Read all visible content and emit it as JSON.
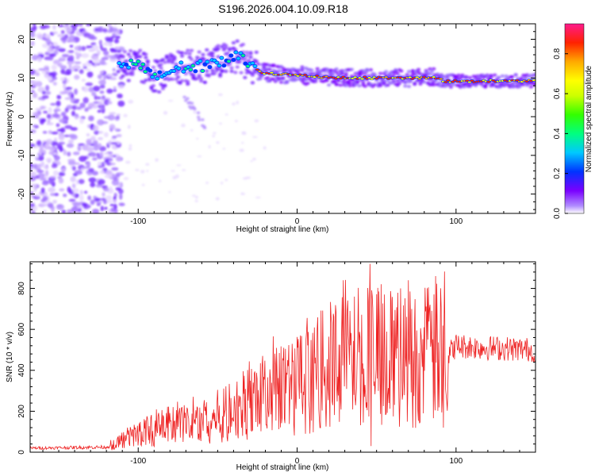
{
  "title": "S196.2026.004.10.09.R18",
  "chart_data": [
    {
      "type": "heatmap",
      "xlabel": "Height of straight line (km)",
      "ylabel": "Frequency (Hz)",
      "xlim": [
        -168,
        150
      ],
      "ylim": [
        -25,
        24
      ],
      "xticks": [
        -100,
        0,
        100
      ],
      "yticks": [
        -20,
        -10,
        0,
        10,
        20
      ],
      "colorbar": {
        "label": "Normalized spectral amplitude",
        "range": [
          0,
          0.95
        ],
        "ticks": [
          0.0,
          0.2,
          0.4,
          0.6,
          0.8
        ],
        "colors": [
          "#ffffff",
          "#7a00ff",
          "#0033ff",
          "#00ffff",
          "#00ff00",
          "#ffff00",
          "#ff8800",
          "#ff0000",
          "#ff1a8c"
        ]
      },
      "ridge": [
        {
          "x": -112,
          "y": 14
        },
        {
          "x": -100,
          "y": 13
        },
        {
          "x": -88,
          "y": 10.5
        },
        {
          "x": -75,
          "y": 12.5
        },
        {
          "x": -62,
          "y": 13
        },
        {
          "x": -50,
          "y": 14
        },
        {
          "x": -38,
          "y": 15.5
        },
        {
          "x": -30,
          "y": 14
        },
        {
          "x": -24,
          "y": 11.5
        },
        {
          "x": -10,
          "y": 11
        },
        {
          "x": 0,
          "y": 10.8
        },
        {
          "x": 15,
          "y": 10.2
        },
        {
          "x": 40,
          "y": 10
        },
        {
          "x": 70,
          "y": 10
        },
        {
          "x": 86,
          "y": 10.2
        },
        {
          "x": 92,
          "y": 9.2
        },
        {
          "x": 120,
          "y": 9.2
        },
        {
          "x": 150,
          "y": 9.3
        }
      ]
    },
    {
      "type": "line",
      "xlabel": "Height of straight line (km)",
      "ylabel": "SNR (10 * v/v)",
      "xlim": [
        -168,
        150
      ],
      "ylim": [
        0,
        930
      ],
      "xticks": [
        -100,
        0,
        100
      ],
      "yticks": [
        0,
        200,
        400,
        600,
        800
      ],
      "color": "#ee2222",
      "envelope": [
        {
          "x": -168,
          "y": 20
        },
        {
          "x": -120,
          "y": 25
        },
        {
          "x": -110,
          "y": 60
        },
        {
          "x": -100,
          "y": 90
        },
        {
          "x": -80,
          "y": 130
        },
        {
          "x": -60,
          "y": 150
        },
        {
          "x": -40,
          "y": 200
        },
        {
          "x": -30,
          "y": 250
        },
        {
          "x": -15,
          "y": 300
        },
        {
          "x": 0,
          "y": 330
        },
        {
          "x": 10,
          "y": 360
        },
        {
          "x": 20,
          "y": 420
        },
        {
          "x": 30,
          "y": 450
        },
        {
          "x": 45,
          "y": 470
        },
        {
          "x": 60,
          "y": 460
        },
        {
          "x": 80,
          "y": 470
        },
        {
          "x": 95,
          "y": 480
        },
        {
          "x": 100,
          "y": 520
        },
        {
          "x": 120,
          "y": 510
        },
        {
          "x": 150,
          "y": 500
        }
      ],
      "spikes": [
        {
          "x": 46,
          "y": 920
        },
        {
          "x": 46.5,
          "y": 30
        },
        {
          "x": 29,
          "y": 840
        },
        {
          "x": 87,
          "y": 860
        },
        {
          "x": 92,
          "y": 120
        },
        {
          "x": 65,
          "y": 800
        },
        {
          "x": 70,
          "y": 840
        },
        {
          "x": 55,
          "y": 770
        },
        {
          "x": 18,
          "y": 250
        },
        {
          "x": 36,
          "y": 760
        },
        {
          "x": 149,
          "y": 470
        }
      ]
    }
  ]
}
